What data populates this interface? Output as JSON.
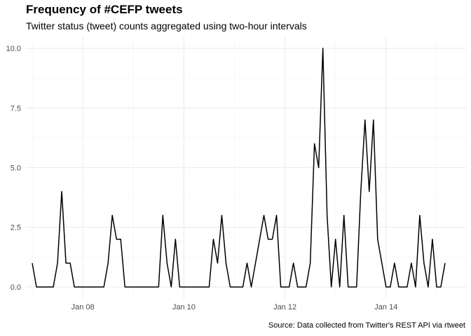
{
  "chart_data": {
    "type": "line",
    "title": "Frequency of #CEFP tweets",
    "subtitle": "Twitter status (tweet) counts aggregated using two-hour intervals",
    "caption": "Source: Data collected from Twitter's REST API via rtweet",
    "xlabel": "",
    "ylabel": "",
    "ylim": [
      -0.5,
      10.5
    ],
    "xlim": [
      "2017-01-06T21:00",
      "2017-01-15T14:00"
    ],
    "x_ticks": [
      {
        "value": "2017-01-08T00:00",
        "label": "Jan 08"
      },
      {
        "value": "2017-01-10T00:00",
        "label": "Jan 10"
      },
      {
        "value": "2017-01-12T00:00",
        "label": "Jan 12"
      },
      {
        "value": "2017-01-14T00:00",
        "label": "Jan 14"
      }
    ],
    "y_ticks": [
      {
        "value": 0,
        "label": "0.0"
      },
      {
        "value": 2.5,
        "label": "2.5"
      },
      {
        "value": 5,
        "label": "5.0"
      },
      {
        "value": 7.5,
        "label": "7.5"
      },
      {
        "value": 10,
        "label": "10.0"
      }
    ],
    "grid": true,
    "line_color": "#000000",
    "series": [
      {
        "start": "2017-01-07T00:00",
        "interval_hours": 2,
        "values": [
          1,
          0,
          0,
          0,
          0,
          0,
          1,
          4,
          1,
          1,
          0,
          0,
          0,
          0,
          0,
          0,
          0,
          0,
          1,
          3,
          2,
          2,
          0,
          0,
          0,
          0,
          0,
          0,
          0,
          0,
          0,
          3,
          1,
          0,
          2,
          0,
          0,
          0,
          0,
          0,
          0,
          0,
          0,
          2,
          1,
          3,
          1,
          0,
          0,
          0,
          0,
          1,
          0,
          1,
          2,
          3,
          2,
          2,
          3,
          0,
          0,
          0,
          1,
          0,
          0,
          0,
          1,
          6,
          5,
          10,
          3,
          0,
          2,
          0,
          3,
          0,
          0,
          0,
          4,
          7,
          4,
          7,
          2,
          1,
          0,
          0,
          1,
          0,
          0,
          0,
          1,
          0,
          3,
          1,
          0,
          2,
          0,
          0,
          1
        ]
      }
    ]
  }
}
